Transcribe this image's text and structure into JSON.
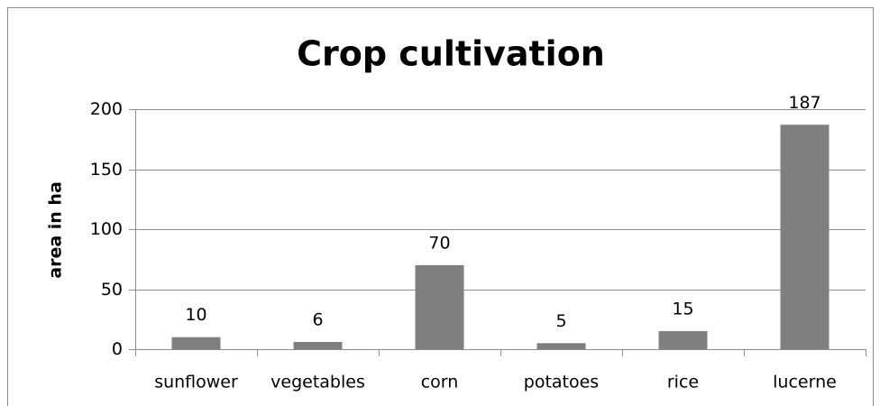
{
  "chart_data": {
    "type": "bar",
    "title": "Crop cultivation",
    "y_label": "area in ha",
    "categories": [
      "sunflower",
      "vegetables",
      "corn",
      "potatoes",
      "rice",
      "lucerne"
    ],
    "values": [
      10,
      6,
      70,
      5,
      15,
      187
    ],
    "color": "#7f7f7f",
    "ylim": [
      0,
      200
    ],
    "yticks": [
      0,
      50,
      100,
      150,
      200
    ],
    "grid": true
  }
}
